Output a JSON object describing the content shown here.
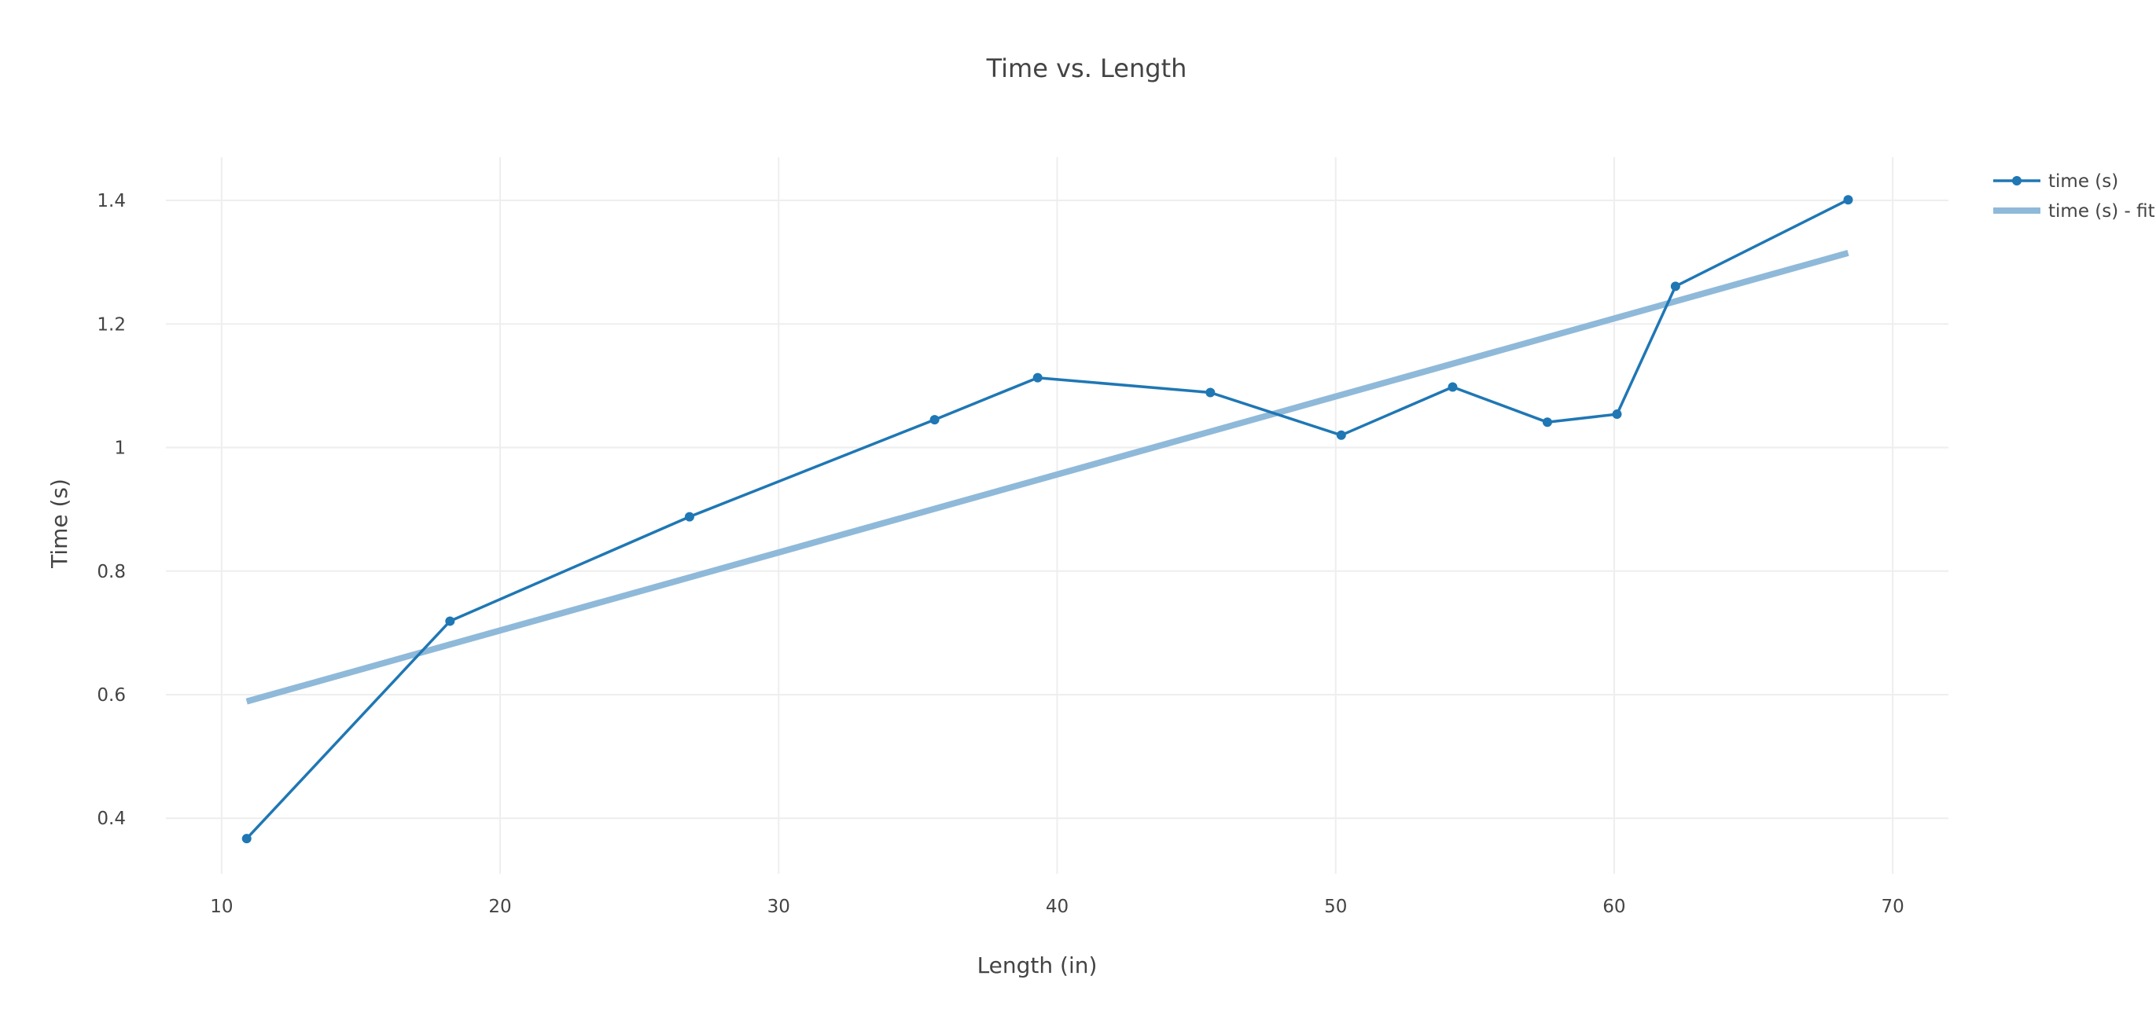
{
  "chart_data": {
    "type": "line",
    "title": "Time vs. Length",
    "xlabel": "Length (in)",
    "ylabel": "Time (s)",
    "xlim": [
      8,
      72
    ],
    "ylim": [
      0.31,
      1.47
    ],
    "grid": true,
    "legend_position": "top-right",
    "x_ticks": [
      10,
      20,
      30,
      40,
      50,
      60,
      70
    ],
    "y_ticks": [
      0.4,
      0.6,
      0.8,
      1,
      1.2,
      1.4
    ],
    "x_tick_labels": [
      "10",
      "20",
      "30",
      "40",
      "50",
      "60",
      "70"
    ],
    "y_tick_labels": [
      "0.4",
      "0.6",
      "0.8",
      "1",
      "1.2",
      "1.4"
    ],
    "series": [
      {
        "name": "time (s)",
        "mode": "lines+markers",
        "color": "#1f77b4",
        "x": [
          10.9,
          18.2,
          26.8,
          35.6,
          39.3,
          45.5,
          50.2,
          54.2,
          57.6,
          60.1,
          62.2,
          68.4
        ],
        "y": [
          0.367,
          0.719,
          0.888,
          1.045,
          1.113,
          1.089,
          1.02,
          1.098,
          1.041,
          1.054,
          1.261,
          1.401
        ]
      },
      {
        "name": "time (s) - fit",
        "mode": "lines",
        "color": "#8fb9d9",
        "x": [
          10.9,
          68.4
        ],
        "y": [
          0.589,
          1.315
        ]
      }
    ]
  }
}
